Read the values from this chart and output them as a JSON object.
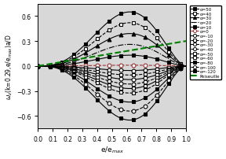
{
  "title": "",
  "xlabel": "e/e$_{max}$",
  "ylabel": "$\\omega_z$(k=0.29,e/e$_{max}$)a/D",
  "xlim": [
    0.0,
    1.0
  ],
  "ylim": [
    -0.75,
    0.75
  ],
  "xticks": [
    0.0,
    0.1,
    0.2,
    0.3,
    0.4,
    0.5,
    0.6,
    0.7,
    0.8,
    0.9,
    1.0
  ],
  "yticks": [
    -0.6,
    -0.3,
    0.0,
    0.3,
    0.6
  ],
  "background": "#d8d8d8",
  "figsize": [
    2.88,
    2.03
  ],
  "curve_peak_x": 0.62,
  "poiseuille_slope": 0.3,
  "marker_styles": [
    {
      "alpha": 50,
      "marker": "s",
      "ls": "-",
      "filled": true,
      "color": "black"
    },
    {
      "alpha": 40,
      "marker": "s",
      "ls": "--",
      "filled": false,
      "color": "black"
    },
    {
      "alpha": 30,
      "marker": "^",
      "ls": "-",
      "filled": true,
      "color": "black"
    },
    {
      "alpha": 20,
      "marker": null,
      "ls": "-.",
      "filled": false,
      "color": "black"
    },
    {
      "alpha": 10,
      "marker": "s",
      "ls": "-",
      "filled": true,
      "color": "black"
    },
    {
      "alpha": 0,
      "marker": "o",
      "ls": "--",
      "filled": false,
      "color": "#993333"
    },
    {
      "alpha": -10,
      "marker": "o",
      "ls": "-",
      "filled": false,
      "color": "black"
    },
    {
      "alpha": -20,
      "marker": "s",
      "ls": "--",
      "filled": false,
      "color": "black"
    },
    {
      "alpha": -30,
      "marker": "o",
      "ls": "-",
      "filled": false,
      "color": "black"
    },
    {
      "alpha": -40,
      "marker": "o",
      "ls": "--",
      "filled": false,
      "color": "black"
    },
    {
      "alpha": -50,
      "marker": "s",
      "ls": "-",
      "filled": false,
      "color": "black"
    },
    {
      "alpha": -60,
      "marker": "s",
      "ls": "--",
      "filled": false,
      "color": "black"
    },
    {
      "alpha": -80,
      "marker": "s",
      "ls": "-",
      "filled": true,
      "color": "black"
    },
    {
      "alpha": -100,
      "marker": "o",
      "ls": "--",
      "filled": false,
      "color": "black"
    },
    {
      "alpha": -120,
      "marker": "s",
      "ls": "-",
      "filled": true,
      "color": "black"
    }
  ]
}
